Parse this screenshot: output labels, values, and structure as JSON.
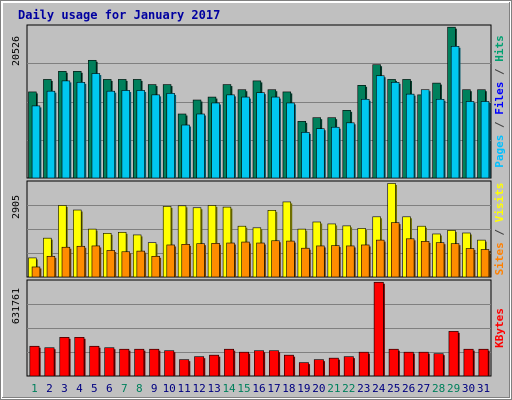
{
  "chart_data": {
    "type": "bar",
    "title": "Daily usage for January 2017",
    "categories": [
      "1",
      "2",
      "3",
      "4",
      "5",
      "6",
      "7",
      "8",
      "9",
      "10",
      "11",
      "12",
      "13",
      "14",
      "15",
      "16",
      "17",
      "18",
      "19",
      "20",
      "21",
      "22",
      "23",
      "24",
      "25",
      "26",
      "27",
      "28",
      "29",
      "30",
      "31"
    ],
    "weekend_days": [
      1,
      7,
      8,
      14,
      15,
      21,
      22,
      28,
      29
    ],
    "panels": [
      {
        "id": "hits_files_pages",
        "ymax_label": "20526",
        "ymax": 20526,
        "label_parts": [
          {
            "text": "Pages",
            "color": "#00c0ff"
          },
          {
            "text": " / ",
            "color": "#404040"
          },
          {
            "text": "Files",
            "color": "#0000ff"
          },
          {
            "text": " / ",
            "color": "#404040"
          },
          {
            "text": "Hits",
            "color": "#00a070"
          }
        ],
        "series": [
          {
            "name": "Hits",
            "color": "#00805c",
            "values": [
              11700,
              13400,
              14500,
              14500,
              16000,
              13400,
              13400,
              13400,
              12700,
              12700,
              8700,
              10600,
              11000,
              12700,
              12000,
              13200,
              12000,
              11700,
              7700,
              8200,
              8200,
              9200,
              12600,
              15400,
              13400,
              13400,
              11300,
              12900,
              20500,
              12000,
              12000
            ]
          },
          {
            "name": "Files",
            "color": "#00c8f0",
            "values": [
              9800,
              11800,
              13200,
              13000,
              14200,
              11800,
              11900,
              11900,
              11300,
              11500,
              7200,
              8700,
              10200,
              11300,
              11000,
              11600,
              11000,
              10200,
              6200,
              6700,
              6900,
              7500,
              10700,
              13900,
              13000,
              11400,
              12000,
              10700,
              17900,
              10400,
              10400
            ]
          }
        ]
      },
      {
        "id": "visits_sites",
        "ymax_label": "2905",
        "ymax": 2905,
        "label_parts": [
          {
            "text": "Sites",
            "color": "#ff8000"
          },
          {
            "text": " / ",
            "color": "#404040"
          },
          {
            "text": "Visits",
            "color": "#ffff00"
          }
        ],
        "series": [
          {
            "name": "Visits",
            "color": "#ffff00",
            "values": [
              590,
              1200,
              2210,
              2070,
              1480,
              1350,
              1380,
              1300,
              1060,
              2180,
              2200,
              2140,
              2210,
              2160,
              1570,
              1520,
              2060,
              2320,
              1480,
              1700,
              1640,
              1580,
              1500,
              1860,
              2890,
              1860,
              1570,
              1330,
              1440,
              1360,
              1140
            ]
          },
          {
            "name": "Sites",
            "color": "#ff8c00",
            "values": [
              310,
              640,
              920,
              950,
              960,
              820,
              780,
              800,
              640,
              990,
              1010,
              1030,
              1040,
              1050,
              1080,
              1050,
              1120,
              1110,
              890,
              960,
              970,
              960,
              990,
              1140,
              1680,
              1180,
              1100,
              1060,
              1030,
              880,
              850
            ]
          }
        ]
      },
      {
        "id": "kbytes",
        "ymax_label": "631761",
        "ymax": 631761,
        "label_parts": [
          {
            "text": "KBytes",
            "color": "#ff0000"
          }
        ],
        "series": [
          {
            "name": "KBytes",
            "color": "#ff0000",
            "values": [
              200000,
              190000,
              260000,
              260000,
              200000,
              190000,
              180000,
              180000,
              180000,
              170000,
              110000,
              130000,
              140000,
              180000,
              160000,
              170000,
              170000,
              140000,
              90000,
              110000,
              120000,
              130000,
              160000,
              630000,
              180000,
              160000,
              160000,
              150000,
              300000,
              180000,
              180000
            ]
          }
        ]
      }
    ]
  }
}
